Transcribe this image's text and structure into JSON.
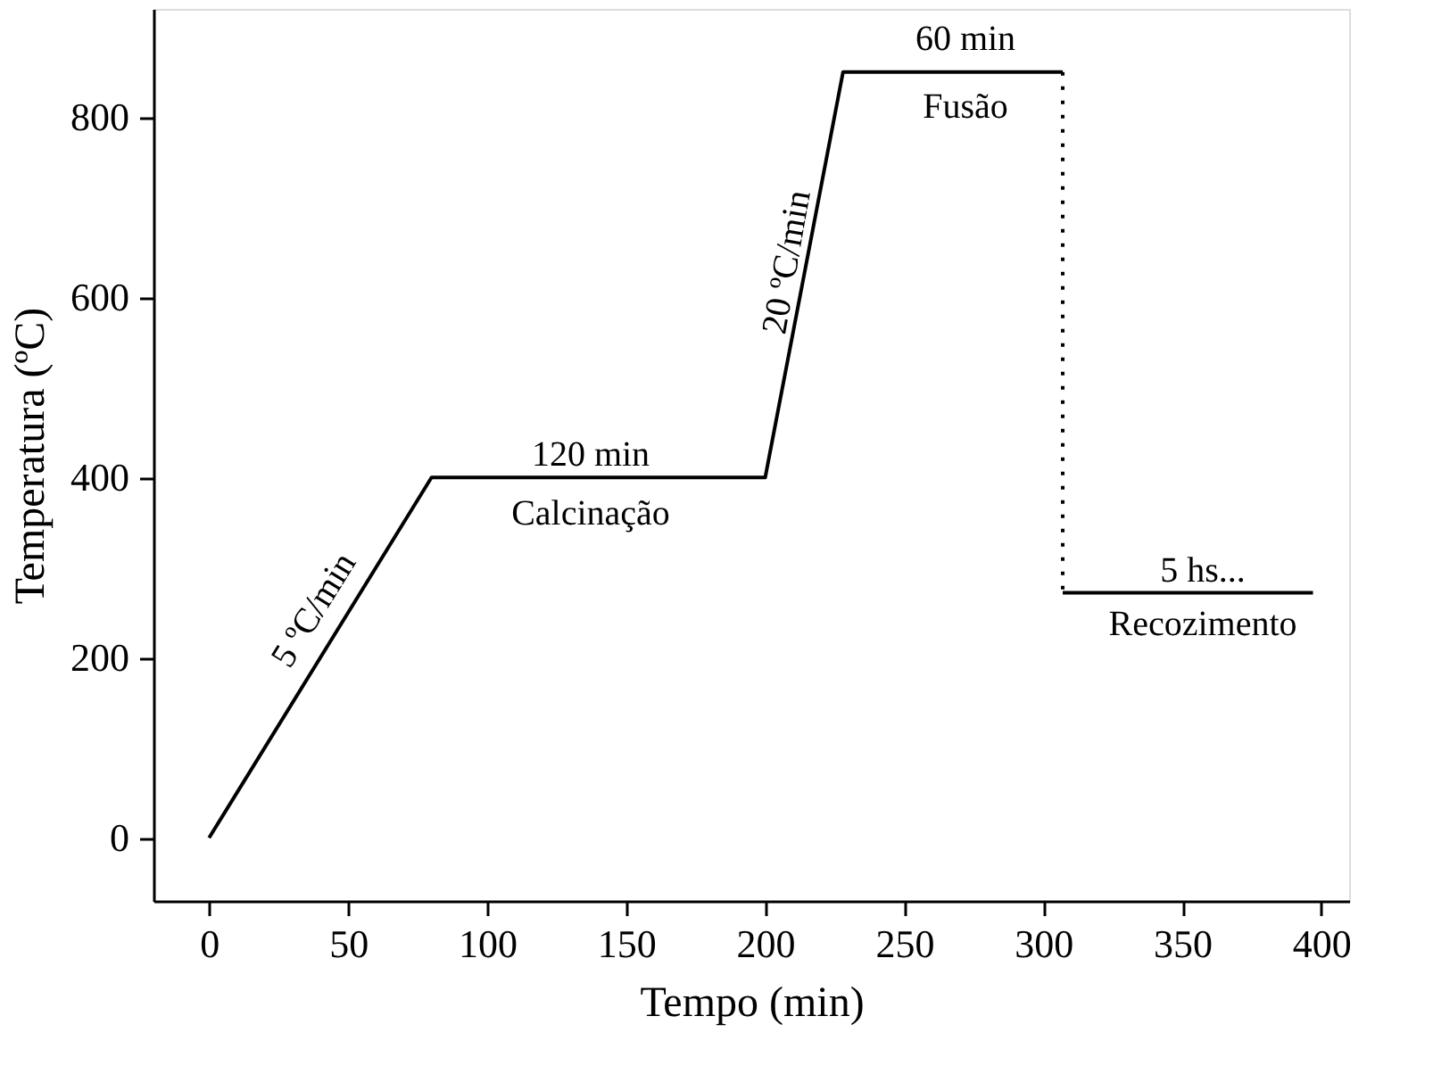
{
  "chart_data": {
    "type": "line",
    "xlabel": "Tempo (min)",
    "ylabel": "Temperatura (ºC)",
    "xlim": [
      -20,
      410
    ],
    "ylim": [
      -70,
      920
    ],
    "xticks": [
      0,
      50,
      100,
      150,
      200,
      250,
      300,
      350,
      400
    ],
    "yticks": [
      0,
      200,
      400,
      600,
      800
    ],
    "grid": false,
    "marker": "none",
    "series": [
      {
        "color": "#000000",
        "line_style": "solid",
        "x": [
          0,
          80,
          200,
          228,
          307
        ],
        "values": [
          0,
          400,
          400,
          850,
          850
        ]
      },
      {
        "color": "#000000",
        "line_style": "dotted",
        "x": [
          307,
          307
        ],
        "values": [
          850,
          272
        ]
      },
      {
        "color": "#000000",
        "line_style": "solid",
        "x": [
          307,
          397
        ],
        "values": [
          272,
          272
        ]
      }
    ],
    "annotations": [
      "5 ºC/min",
      "120 min",
      "Calcinação",
      "20 ºC/min",
      "60 min",
      "Fusão",
      "5 hs...",
      "Recozimento"
    ]
  }
}
